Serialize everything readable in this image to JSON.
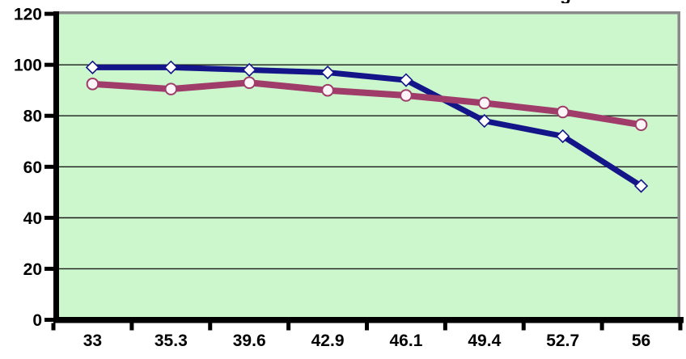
{
  "chart": {
    "partial_title_text": "g"
  },
  "chart_data": {
    "type": "line",
    "title": "",
    "xlabel": "",
    "ylabel": "",
    "categories": [
      "33",
      "35.3",
      "39.6",
      "42.9",
      "46.1",
      "49.4",
      "52.7",
      "56"
    ],
    "series": [
      {
        "name": "series-1-navy-diamond",
        "marker": "diamond",
        "line_color": "#15158a",
        "marker_fill": "#ffffff",
        "line_width": 7,
        "values": [
          99,
          99,
          98,
          97,
          94,
          78,
          72,
          52.5
        ]
      },
      {
        "name": "series-2-maroon-circle",
        "marker": "circle",
        "line_color": "#a03c6a",
        "marker_fill": "#fdf4f8",
        "line_width": 8,
        "values": [
          92.5,
          90.5,
          93,
          90,
          88,
          85,
          81.5,
          76.5
        ]
      }
    ],
    "ylim": [
      0,
      120
    ],
    "yticks": [
      0,
      20,
      40,
      60,
      80,
      100,
      120
    ],
    "grid": true,
    "legend": "none",
    "plot_bg_color": "#ccf7cc",
    "outer_bg_color": "#ffffff",
    "plot_border_color": "#8a8a8a",
    "gridline_color": "#1a1a1a",
    "axis_color": "#000000"
  }
}
